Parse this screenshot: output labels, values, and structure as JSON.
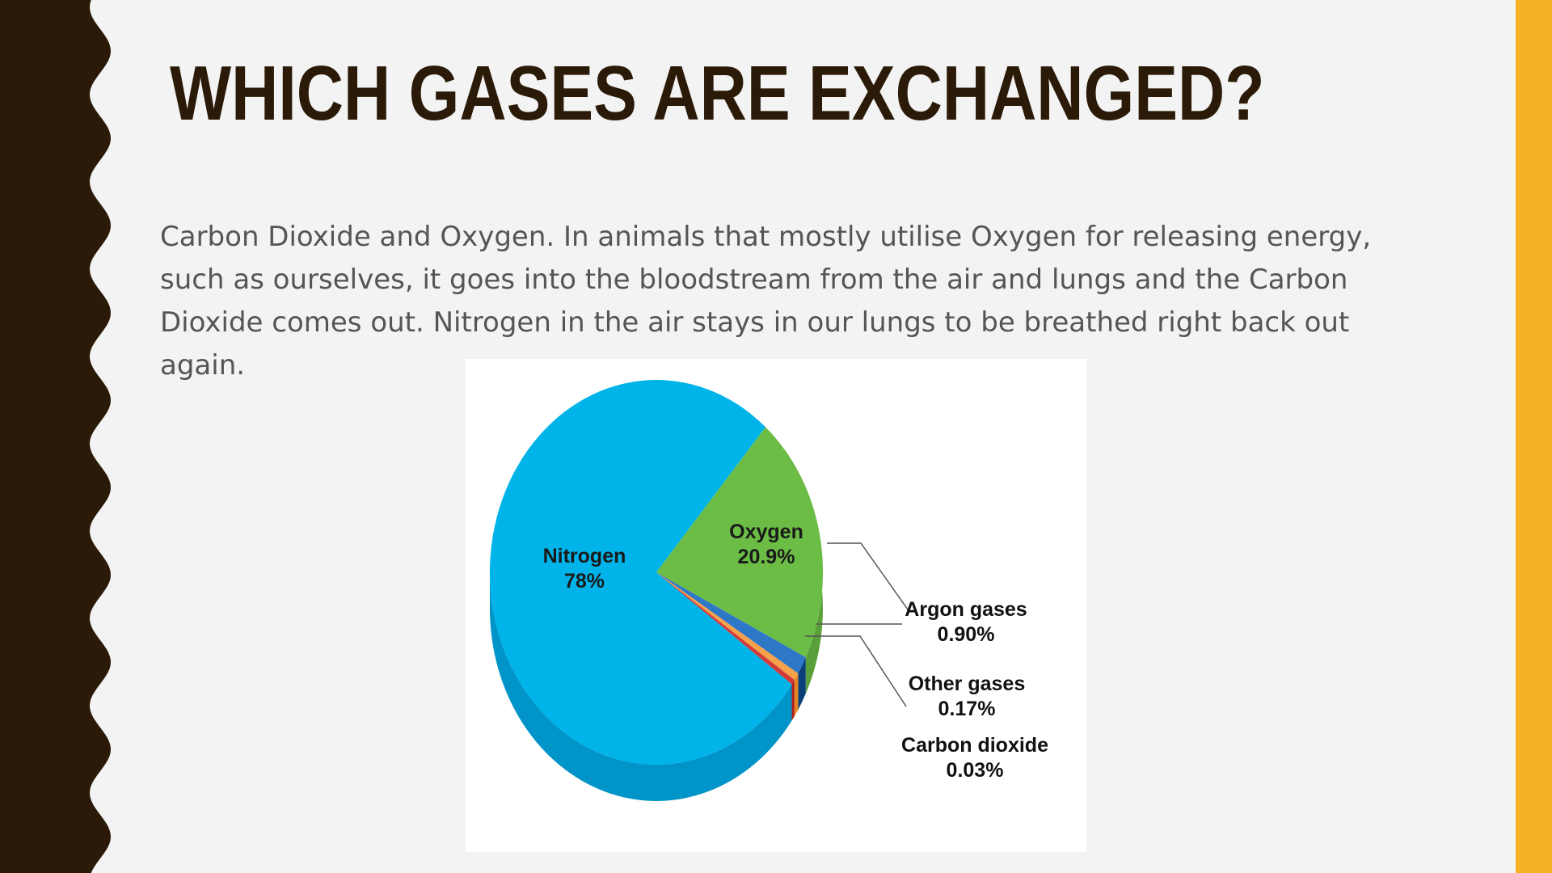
{
  "slide": {
    "title": "WHICH GASES ARE EXCHANGED?",
    "body": "Carbon Dioxide and Oxygen. In animals that mostly utilise Oxygen for releasing energy, such as ourselves, it goes into the bloodstream from the air and lungs and the Carbon Dioxide comes out. Nitrogen in the air stays in our lungs to be breathed right back out again."
  },
  "theme": {
    "background": "#f3f3f3",
    "left_border": "#2a1a07",
    "right_accent": "#f6b127",
    "title_color": "#2a1a07"
  },
  "chart_data": {
    "type": "pie",
    "title": "",
    "slices": [
      {
        "label": "Nitrogen",
        "value_label": "78%",
        "value": 78,
        "color": "#00b4ea",
        "side_color": "#0094c8",
        "label_position": "inside"
      },
      {
        "label": "Oxygen",
        "value_label": "20.9%",
        "value": 20.9,
        "color": "#6cbd45",
        "side_color": "#5aa03a",
        "label_position": "inside"
      },
      {
        "label": "Argon gases",
        "value_label": "0.90%",
        "value": 0.9,
        "color": "#2f78c8",
        "side_color": "#0b3f7a",
        "label_position": "outside"
      },
      {
        "label": "Other gases",
        "value_label": "0.17%",
        "value": 0.17,
        "color": "#f5a24a",
        "side_color": "#e5871f",
        "label_position": "outside"
      },
      {
        "label": "Carbon dioxide",
        "value_label": "0.03%",
        "value": 0.03,
        "color": "#d33a3a",
        "side_color": "#b02020",
        "label_position": "outside"
      }
    ],
    "legend": "none",
    "style": "3d-pie"
  }
}
